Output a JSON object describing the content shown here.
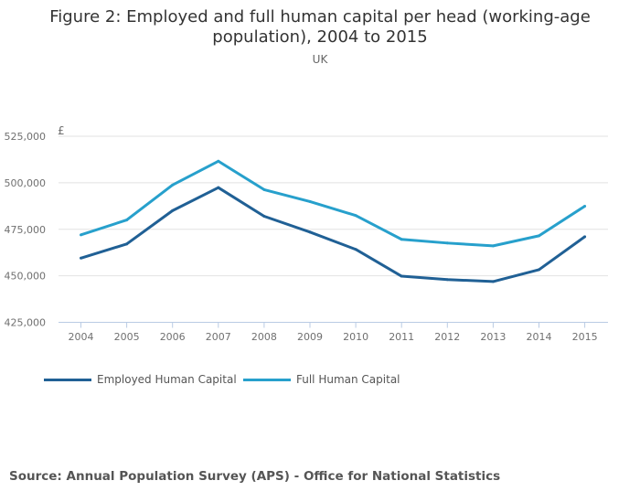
{
  "title": "Figure 2: Employed and full human capital per head (working-age population), 2004 to 2015",
  "subtitle": "UK",
  "source": "Source: Annual Population Survey (APS) - Office for National Statistics",
  "chart_data": {
    "type": "line",
    "ylabel": "£",
    "xlabel": "",
    "ylim": [
      425000,
      525000
    ],
    "yticks": [
      425000,
      450000,
      475000,
      500000,
      525000
    ],
    "ytick_labels": [
      "425,000",
      "450,000",
      "475,000",
      "500,000",
      "525,000"
    ],
    "grid": true,
    "legend": "bottom-left",
    "categories": [
      "2004",
      "2005",
      "2006",
      "2007",
      "2008",
      "2009",
      "2010",
      "2011",
      "2012",
      "2013",
      "2014",
      "2015"
    ],
    "series": [
      {
        "name": "Employed Human Capital",
        "color": "#206095",
        "values": [
          459500,
          467100,
          485000,
          497400,
          482000,
          473500,
          464200,
          449800,
          448000,
          446900,
          453300,
          471000
        ]
      },
      {
        "name": "Full Human Capital",
        "color": "#27a0cc",
        "values": [
          472000,
          480000,
          498800,
          511600,
          496300,
          489900,
          482400,
          469600,
          467600,
          466100,
          471500,
          487400
        ]
      }
    ]
  }
}
